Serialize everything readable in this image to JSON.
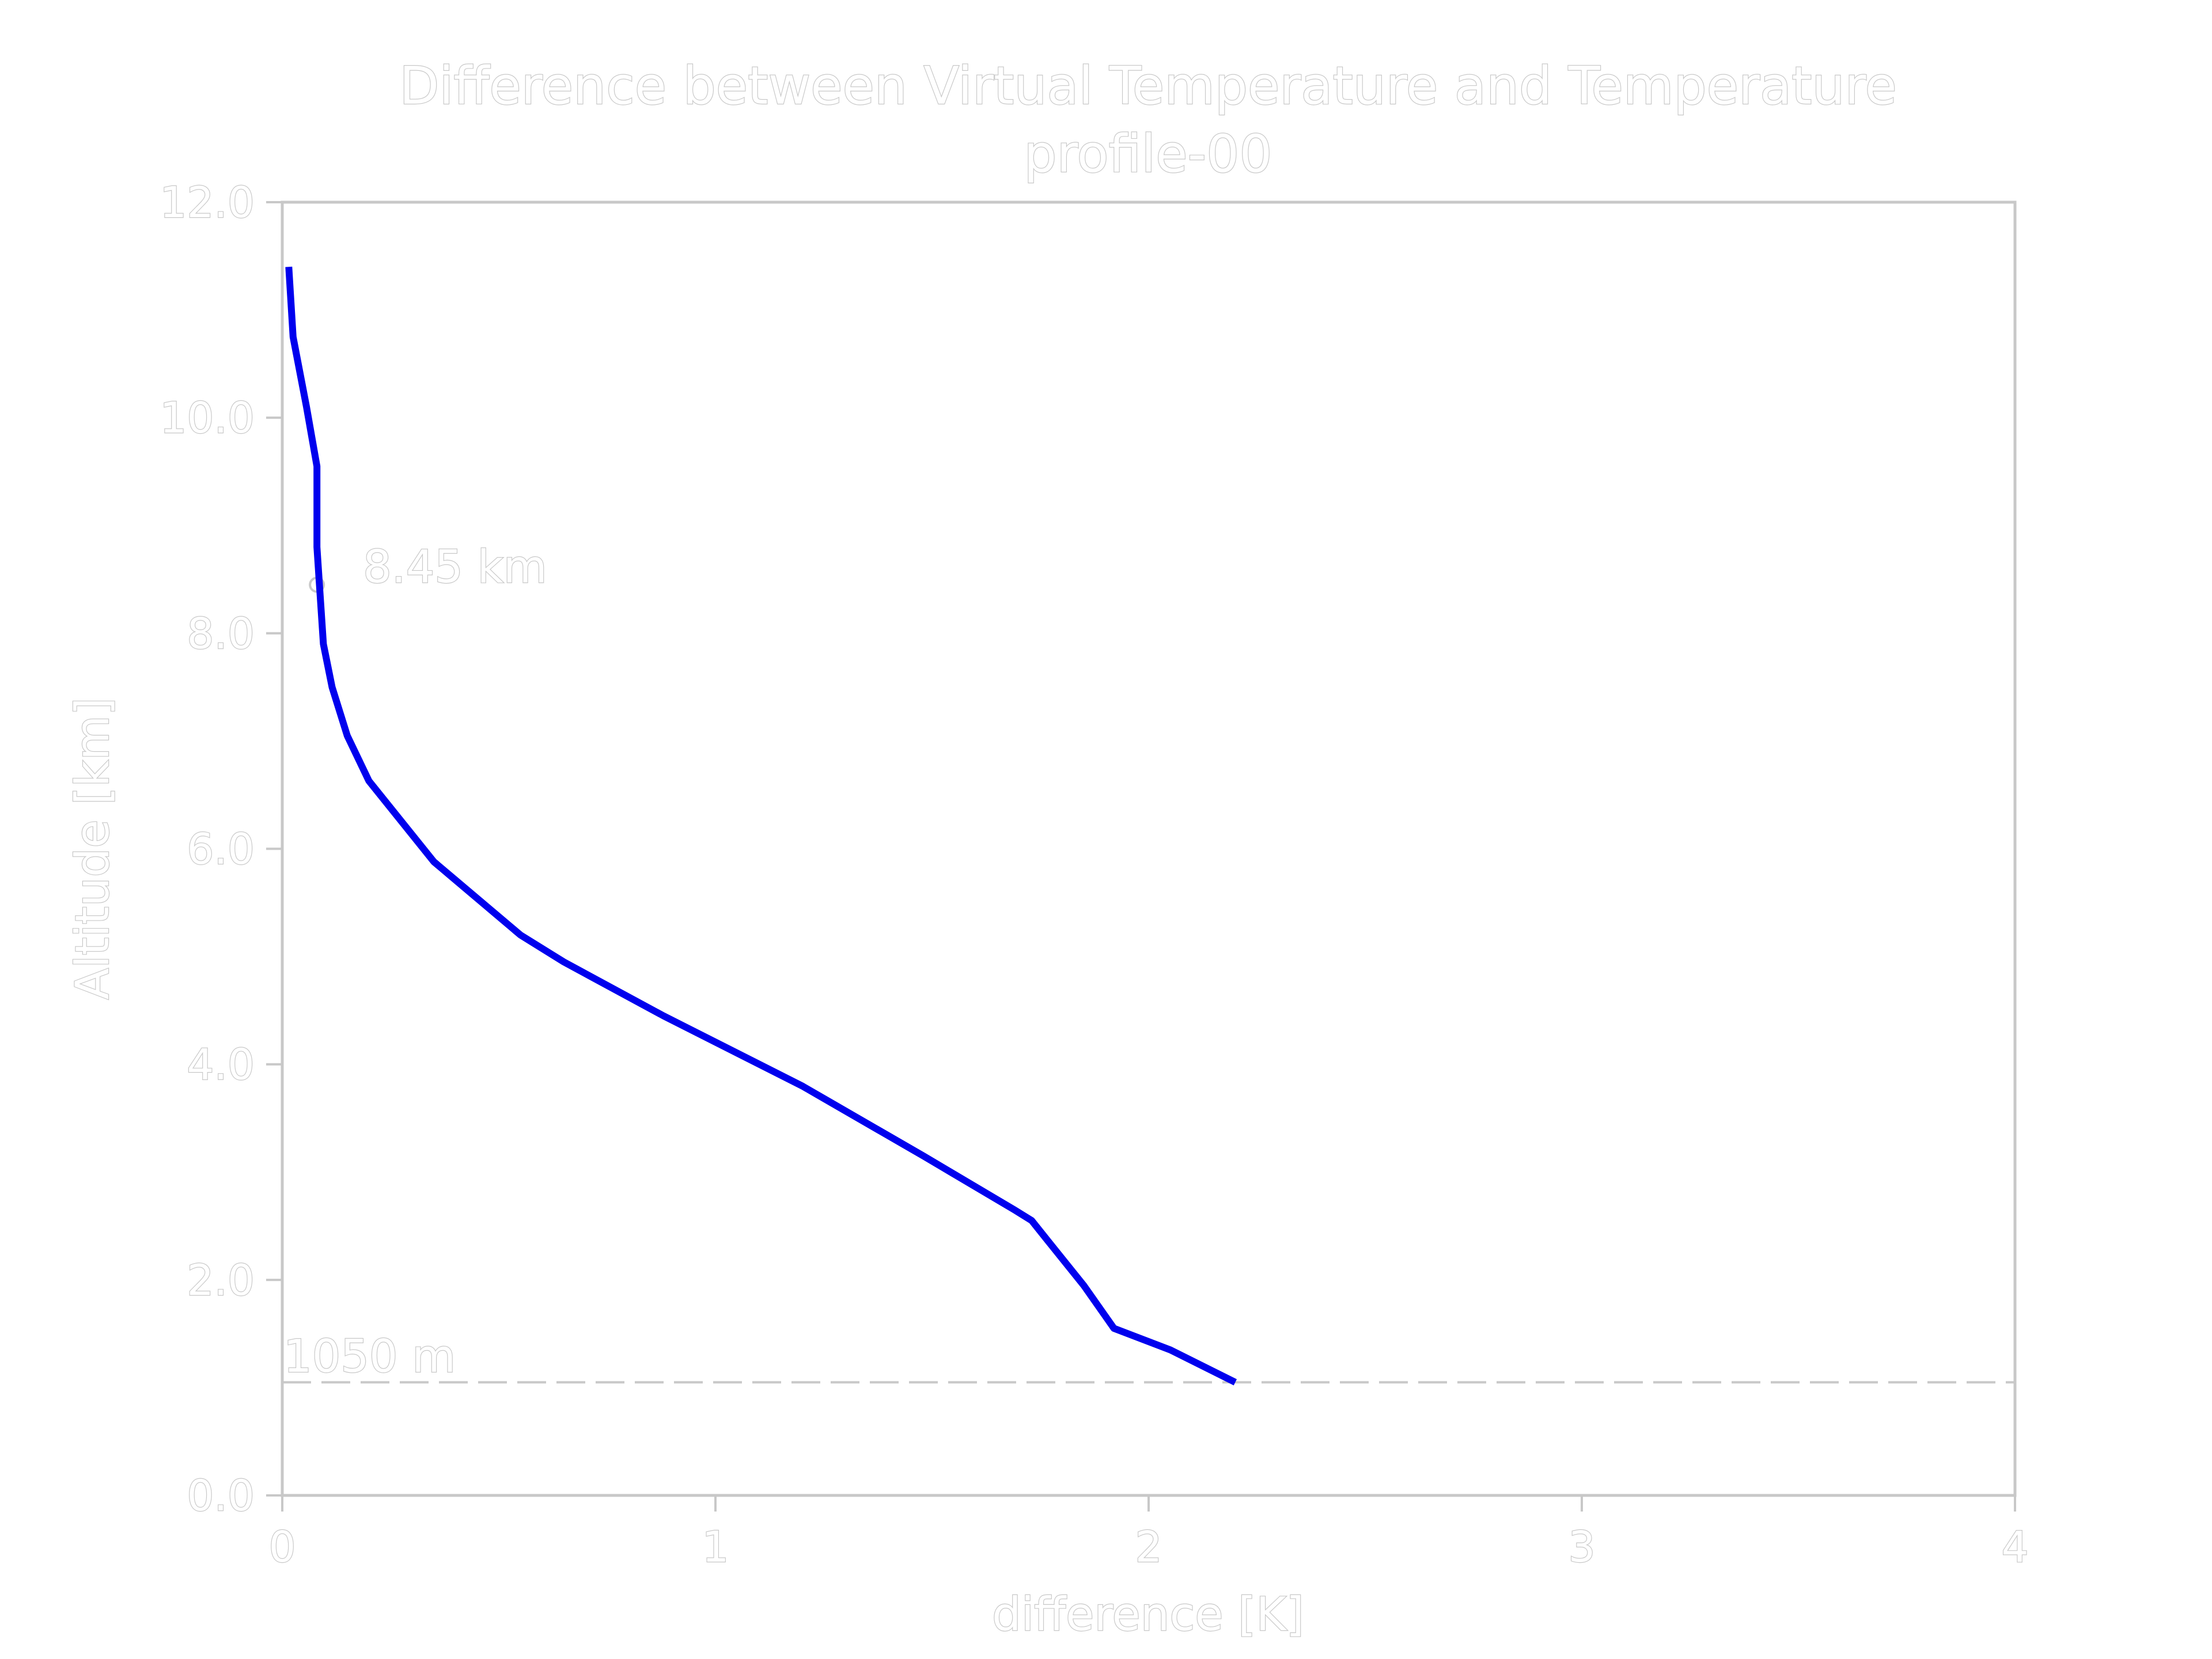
{
  "chart_data": {
    "type": "line",
    "title": "Difference between Virtual Temperature and Temperature",
    "subtitle": "profile-00",
    "xlabel": "difference [K]",
    "ylabel": "Altitude [km]",
    "xlim": [
      0,
      4
    ],
    "ylim": [
      0,
      12
    ],
    "xticks": [
      0,
      1,
      2,
      3,
      4
    ],
    "xtick_labels": [
      "0",
      "1",
      "2",
      "3",
      "4"
    ],
    "yticks": [
      0,
      2,
      4,
      6,
      8,
      10,
      12
    ],
    "ytick_labels": [
      "0.0",
      "2.0",
      "4.0",
      "6.0",
      "8.0",
      "10.0",
      "12.0"
    ],
    "grid": false,
    "series": [
      {
        "color": "#0000ee",
        "x": [
          2.2,
          2.05,
          1.92,
          1.85,
          1.77,
          1.73,
          1.69,
          1.48,
          1.2,
          0.88,
          0.65,
          0.55,
          0.35,
          0.2,
          0.15,
          0.115,
          0.095,
          0.08,
          0.08,
          0.056,
          0.025,
          0.015
        ],
        "y": [
          1.05,
          1.35,
          1.55,
          1.95,
          2.35,
          2.55,
          2.65,
          3.15,
          3.8,
          4.45,
          4.95,
          5.2,
          5.88,
          6.63,
          7.05,
          7.5,
          7.9,
          8.8,
          9.55,
          10.1,
          10.75,
          11.4
        ]
      }
    ],
    "annotations": [
      {
        "text": "8.45 km",
        "x": 0.08,
        "y": 8.45,
        "marker": "circle"
      },
      {
        "text": "1050 m",
        "y": 1.05,
        "line": "horizontal-dashed"
      }
    ]
  }
}
